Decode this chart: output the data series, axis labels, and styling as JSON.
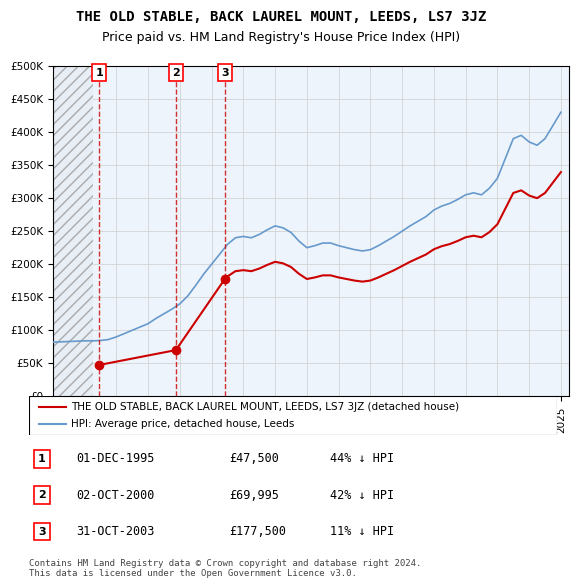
{
  "title": "THE OLD STABLE, BACK LAUREL MOUNT, LEEDS, LS7 3JZ",
  "subtitle": "Price paid vs. HM Land Registry's House Price Index (HPI)",
  "ylim": [
    0,
    500000
  ],
  "yticks": [
    0,
    50000,
    100000,
    150000,
    200000,
    250000,
    300000,
    350000,
    400000,
    450000,
    500000
  ],
  "ylabel_format": "£{0}K",
  "hpi_color": "#6699cc",
  "price_color": "#cc0000",
  "sale_points": [
    {
      "date_num": 1995.92,
      "price": 47500,
      "label": "1"
    },
    {
      "date_num": 2000.75,
      "price": 69995,
      "label": "2"
    },
    {
      "date_num": 2003.83,
      "price": 177500,
      "label": "3"
    }
  ],
  "sale_annotations": [
    {
      "label": "1",
      "date": "01-DEC-1995",
      "price": "£47,500",
      "pct": "44% ↓ HPI"
    },
    {
      "label": "2",
      "date": "02-OCT-2000",
      "price": "£69,995",
      "pct": "42% ↓ HPI"
    },
    {
      "label": "3",
      "date": "31-OCT-2003",
      "price": "£177,500",
      "pct": "11% ↓ HPI"
    }
  ],
  "legend_entries": [
    "THE OLD STABLE, BACK LAUREL MOUNT, LEEDS, LS7 3JZ (detached house)",
    "HPI: Average price, detached house, Leeds"
  ],
  "footer": "Contains HM Land Registry data © Crown copyright and database right 2024.\nThis data is licensed under the Open Government Licence v3.0.",
  "hatch_color": "#cccccc",
  "bg_color": "#ddeeff",
  "plot_bg": "#eef4fb"
}
